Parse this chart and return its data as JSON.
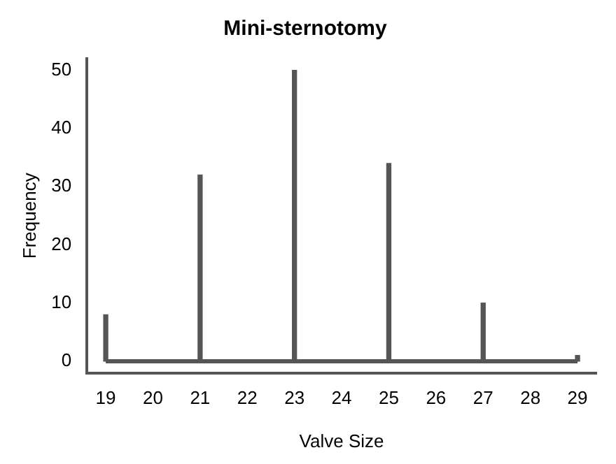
{
  "chart_data": {
    "type": "bar",
    "title": "Mini-sternotomy",
    "xlabel": "Valve Size",
    "ylabel": "Frequency",
    "x": [
      19,
      20,
      21,
      22,
      23,
      24,
      25,
      26,
      27,
      28,
      29
    ],
    "values": [
      8,
      0,
      32,
      0,
      50,
      0,
      34,
      0,
      10,
      0,
      1
    ],
    "color": "#555555",
    "xlim": [
      18.6,
      29.4
    ],
    "xticks": [
      19,
      20,
      21,
      22,
      23,
      24,
      25,
      26,
      27,
      28,
      29
    ],
    "ylim": [
      -2,
      52
    ],
    "yticks": [
      0,
      10,
      20,
      30,
      40,
      50
    ],
    "ref_lines": [
      {
        "axis": "y",
        "value": 0,
        "color": "#555555"
      }
    ],
    "grid": false,
    "legend": false
  }
}
